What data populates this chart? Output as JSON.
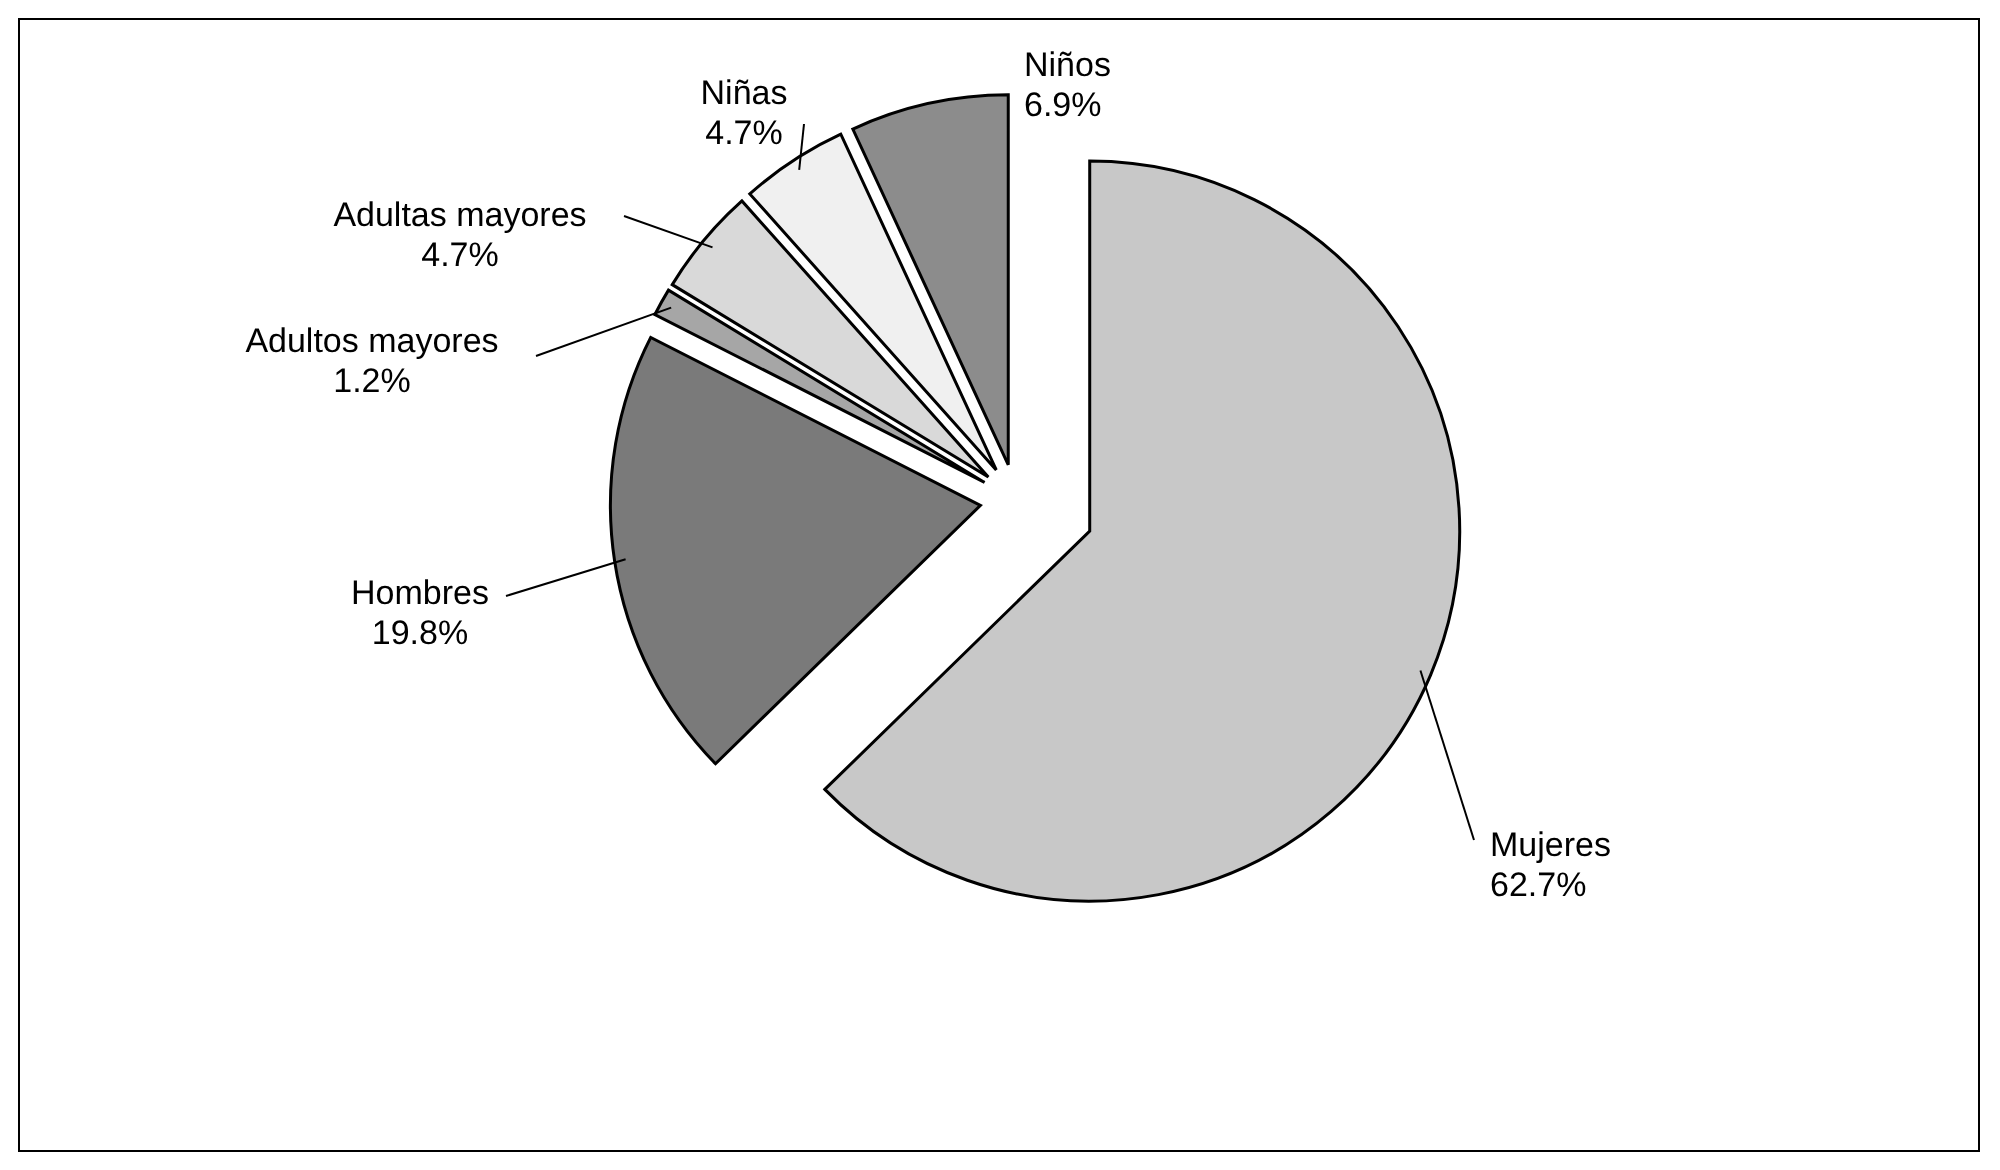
{
  "chart_data": {
    "type": "pie",
    "categories": [
      "Mujeres",
      "Hombres",
      "Adultos mayores",
      "Adultas mayores",
      "Niñas",
      "Niños"
    ],
    "values": [
      62.7,
      19.8,
      1.2,
      4.7,
      4.7,
      6.9
    ],
    "value_labels": [
      "62.7%",
      "19.8%",
      "1.2%",
      "4.7%",
      "4.7%",
      "6.9%"
    ],
    "colors": [
      "#c8c8c8",
      "#7a7a7a",
      "#a6a6a6",
      "#d9d9d9",
      "#f0f0f0",
      "#8c8c8c"
    ]
  }
}
